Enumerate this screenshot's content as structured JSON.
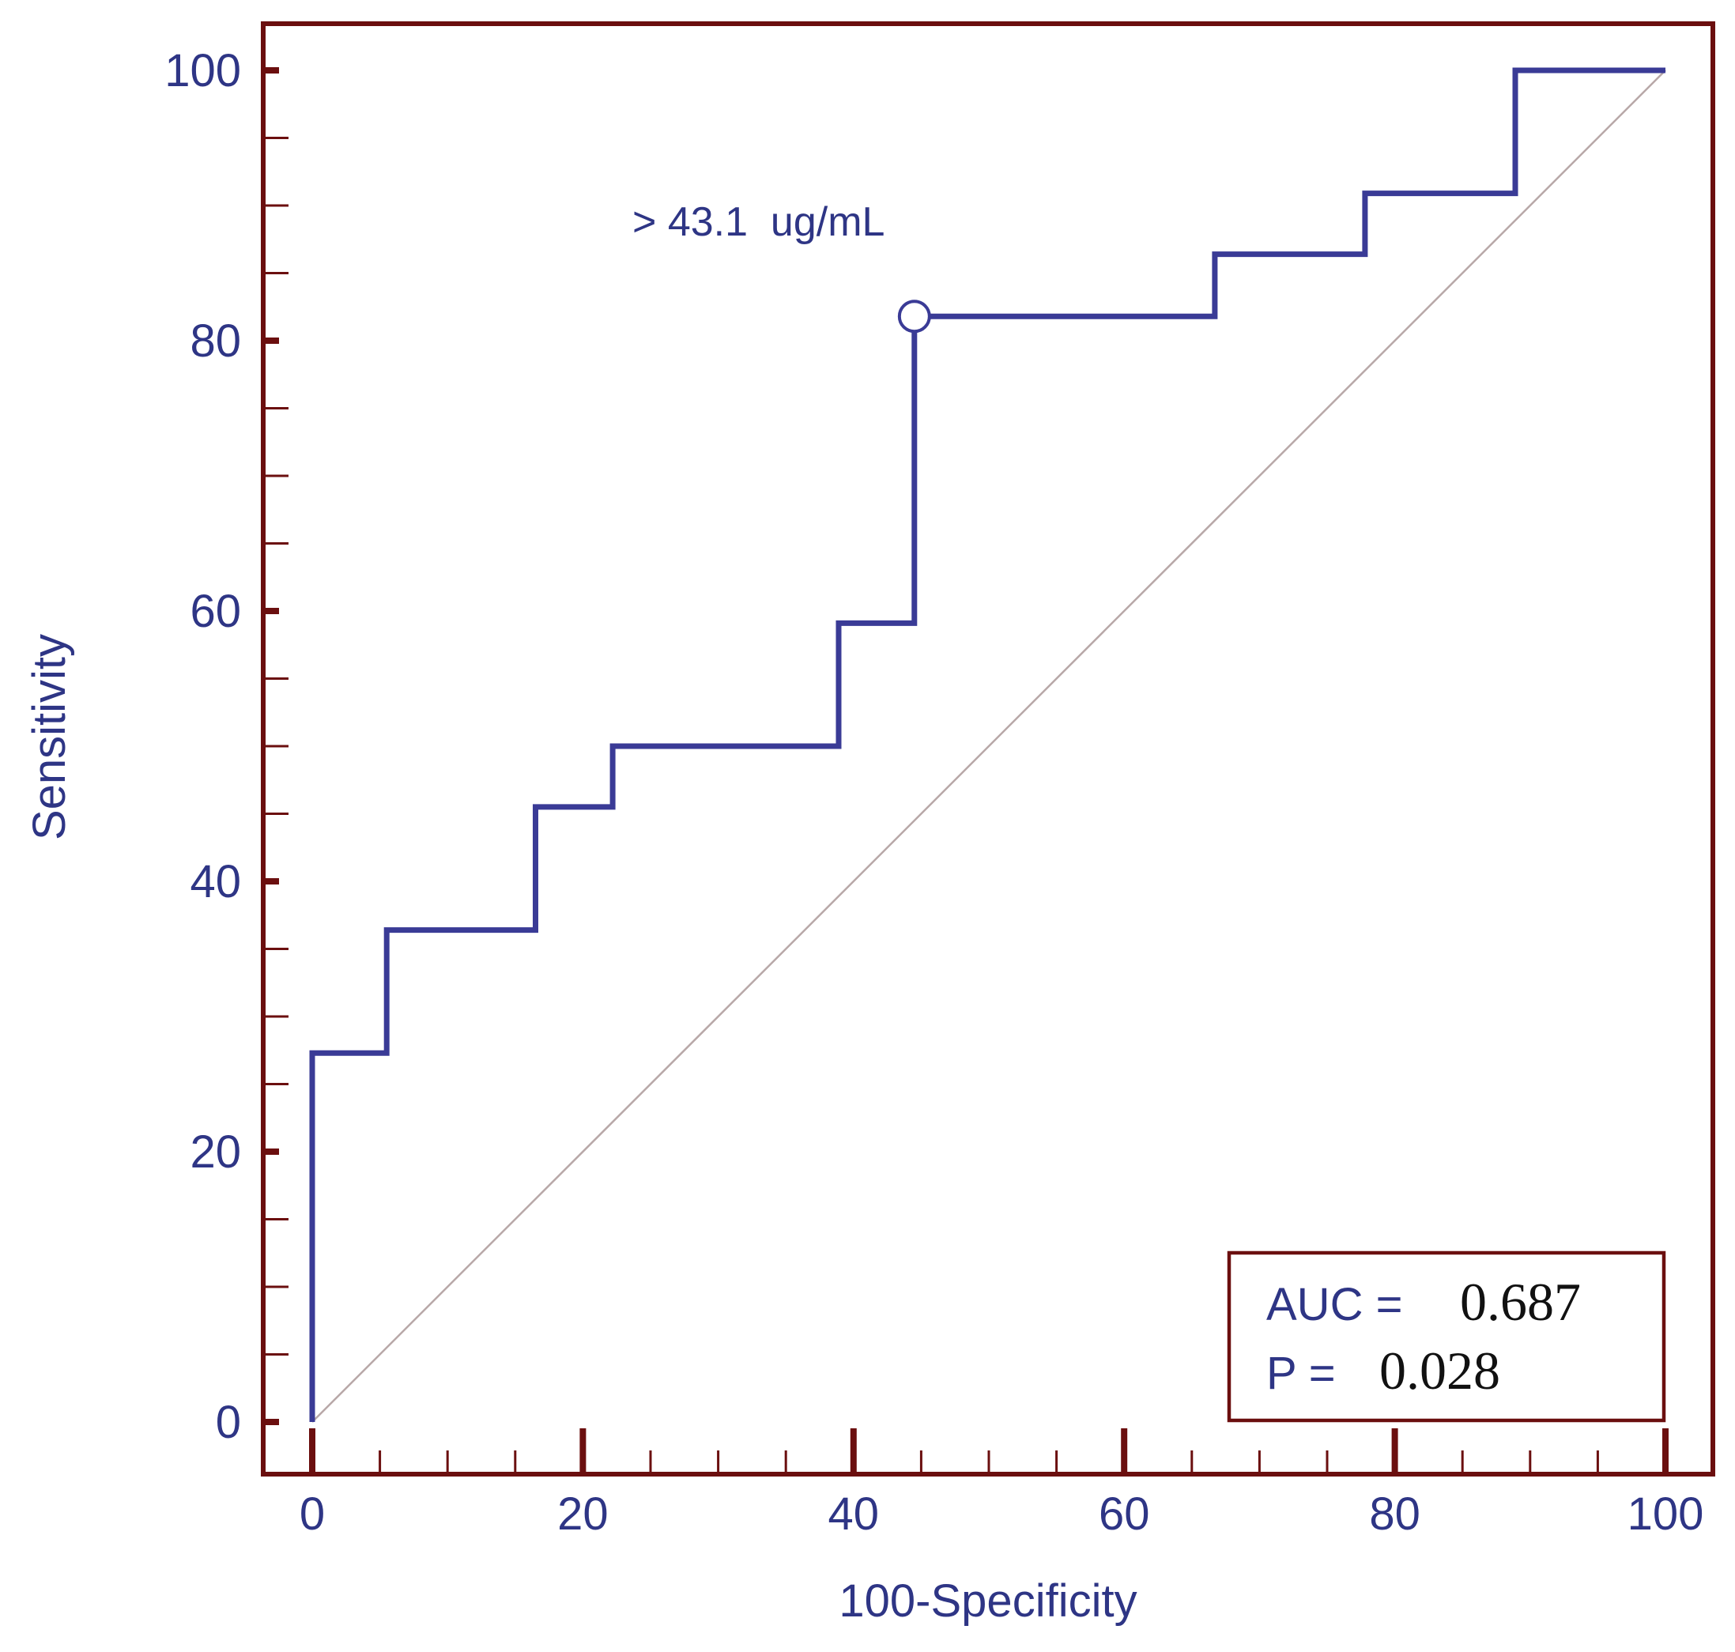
{
  "colors": {
    "frame": "#6b0f0f",
    "curve": "#3a3b96",
    "label": "#2e3585",
    "diagonal": "#b8a8a8",
    "stats_text": "#2e3585"
  },
  "chart_data": {
    "type": "line",
    "xlabel": "100-Specificity",
    "ylabel": "Sensitivity",
    "xlim": [
      0,
      100
    ],
    "ylim": [
      0,
      100
    ],
    "x_ticks": [
      "0",
      "20",
      "40",
      "60",
      "80",
      "100"
    ],
    "y_ticks": [
      "0",
      "20",
      "40",
      "60",
      "80",
      "100"
    ],
    "grid": false,
    "roc_curve": {
      "x": [
        0,
        0,
        5.5,
        5.5,
        16.5,
        16.5,
        22.2,
        22.2,
        38.9,
        38.9,
        44.5,
        44.5,
        66.7,
        66.7,
        77.8,
        77.8,
        88.9,
        88.9,
        100
      ],
      "y": [
        0,
        27.3,
        27.3,
        36.4,
        36.4,
        45.5,
        45.5,
        50,
        50,
        59.1,
        59.1,
        81.8,
        81.8,
        86.4,
        86.4,
        90.9,
        90.9,
        100,
        100
      ]
    },
    "reference_line": {
      "x": [
        0,
        100
      ],
      "y": [
        0,
        100
      ]
    },
    "criterion_point": {
      "x": 44.5,
      "y": 81.8,
      "label": "> 43.1  ug/mL"
    },
    "stats_box": {
      "auc_label": "AUC =",
      "auc_value": "0.687",
      "p_label": "P =",
      "p_value": "0.028"
    }
  }
}
